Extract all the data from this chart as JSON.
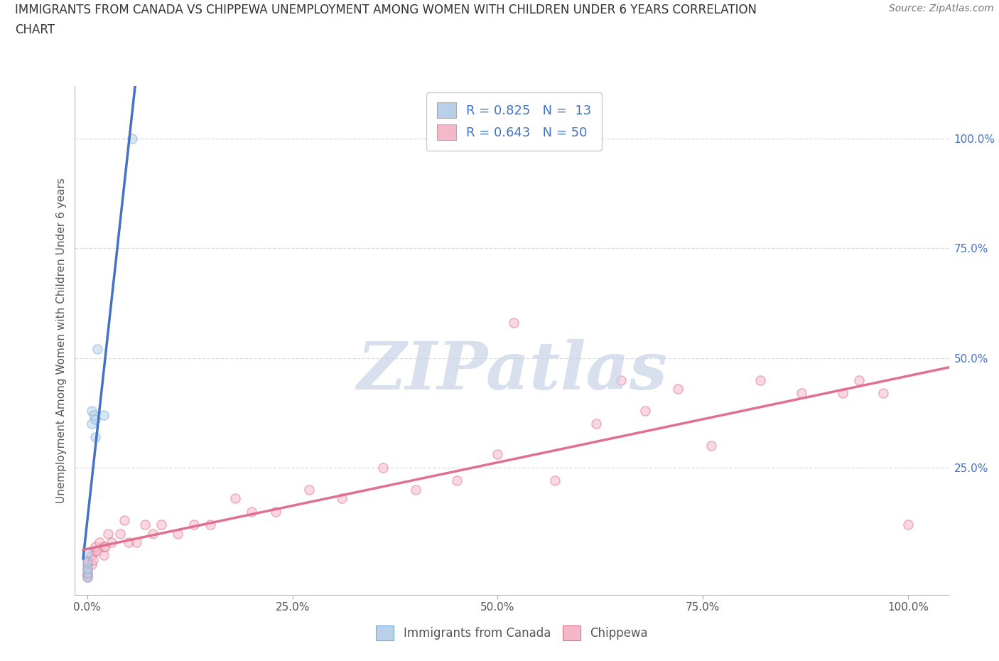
{
  "title_line1": "IMMIGRANTS FROM CANADA VS CHIPPEWA UNEMPLOYMENT AMONG WOMEN WITH CHILDREN UNDER 6 YEARS CORRELATION",
  "title_line2": "CHART",
  "source": "Source: ZipAtlas.com",
  "ylabel": "Unemployment Among Women with Children Under 6 years",
  "xticklabels": [
    "0.0%",
    "25.0%",
    "50.0%",
    "75.0%",
    "100.0%"
  ],
  "xticks": [
    0.0,
    0.25,
    0.5,
    0.75,
    1.0
  ],
  "yticklabels_right": [
    "100.0%",
    "75.0%",
    "50.0%",
    "25.0%"
  ],
  "yticks_right": [
    1.0,
    0.75,
    0.5,
    0.25
  ],
  "xlim": [
    -0.015,
    1.05
  ],
  "ylim": [
    -0.04,
    1.12
  ],
  "legend_entries": [
    {
      "label": "R = 0.825   N =  13",
      "color": "#b8d0ea"
    },
    {
      "label": "R = 0.643   N = 50",
      "color": "#f5b8c8"
    }
  ],
  "legend_label_color": "#4472c4",
  "canada_color": "#b8d0ea",
  "canada_edge": "#7aadd4",
  "chippewa_color": "#f5b8c8",
  "chippewa_edge": "#e07090",
  "trendline_canada_color": "#4472c4",
  "trendline_chippewa_color": "#e07090",
  "watermark": "ZIPatlas",
  "watermark_color": "#c8d4e8",
  "canada_x": [
    0.0,
    0.0,
    0.0,
    0.0,
    0.0,
    0.005,
    0.005,
    0.008,
    0.01,
    0.01,
    0.012,
    0.02,
    0.055
  ],
  "canada_y": [
    0.0,
    0.01,
    0.02,
    0.035,
    0.055,
    0.35,
    0.38,
    0.37,
    0.32,
    0.36,
    0.52,
    0.37,
    1.0
  ],
  "chippewa_x": [
    0.0,
    0.0,
    0.0,
    0.0,
    0.0,
    0.0,
    0.005,
    0.005,
    0.007,
    0.009,
    0.01,
    0.012,
    0.015,
    0.02,
    0.02,
    0.022,
    0.025,
    0.03,
    0.04,
    0.045,
    0.05,
    0.06,
    0.07,
    0.08,
    0.09,
    0.11,
    0.13,
    0.15,
    0.18,
    0.2,
    0.23,
    0.27,
    0.31,
    0.36,
    0.4,
    0.45,
    0.5,
    0.52,
    0.57,
    0.62,
    0.65,
    0.68,
    0.72,
    0.76,
    0.82,
    0.87,
    0.92,
    0.94,
    0.97,
    1.0
  ],
  "chippewa_y": [
    0.0,
    0.005,
    0.01,
    0.02,
    0.03,
    0.04,
    0.03,
    0.05,
    0.04,
    0.06,
    0.07,
    0.06,
    0.08,
    0.05,
    0.07,
    0.07,
    0.1,
    0.08,
    0.1,
    0.13,
    0.08,
    0.08,
    0.12,
    0.1,
    0.12,
    0.1,
    0.12,
    0.12,
    0.18,
    0.15,
    0.15,
    0.2,
    0.18,
    0.25,
    0.2,
    0.22,
    0.28,
    0.58,
    0.22,
    0.35,
    0.45,
    0.38,
    0.43,
    0.3,
    0.45,
    0.42,
    0.42,
    0.45,
    0.42,
    0.12
  ],
  "marker_size": 90,
  "marker_alpha": 0.55,
  "grid_color": "#d8d8d8",
  "background_color": "#ffffff"
}
